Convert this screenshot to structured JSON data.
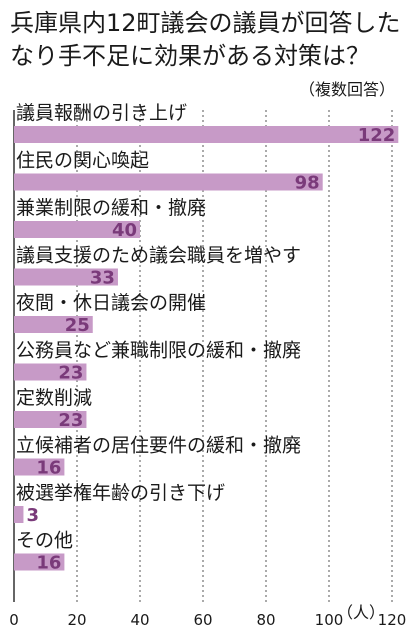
{
  "chart_data": {
    "type": "bar",
    "orientation": "horizontal",
    "title_lines": [
      "兵庫県内12町議会の議員が回答した",
      "なり手不足に効果がある対策は？"
    ],
    "note": "（複数回答）",
    "categories": [
      "議員報酬の引き上げ",
      "住民の関心喚起",
      "兼業制限の緩和・撤廃",
      "議員支援のため議会職員を増やす",
      "夜間・休日議会の開催",
      "公務員など兼職制限の緩和・撤廃",
      "定数削減",
      "立候補者の居住要件の緩和・撤廃",
      "被選挙権年齢の引き下げ",
      "その他"
    ],
    "values": [
      122,
      98,
      40,
      33,
      25,
      23,
      23,
      16,
      3,
      16
    ],
    "xlim": [
      0,
      120
    ],
    "ticks": [
      0,
      20,
      40,
      60,
      80,
      100,
      120
    ],
    "unit": "（人）",
    "grid": true,
    "bar_color": "#c79ac7",
    "value_label_color": "#7a3a7a"
  }
}
